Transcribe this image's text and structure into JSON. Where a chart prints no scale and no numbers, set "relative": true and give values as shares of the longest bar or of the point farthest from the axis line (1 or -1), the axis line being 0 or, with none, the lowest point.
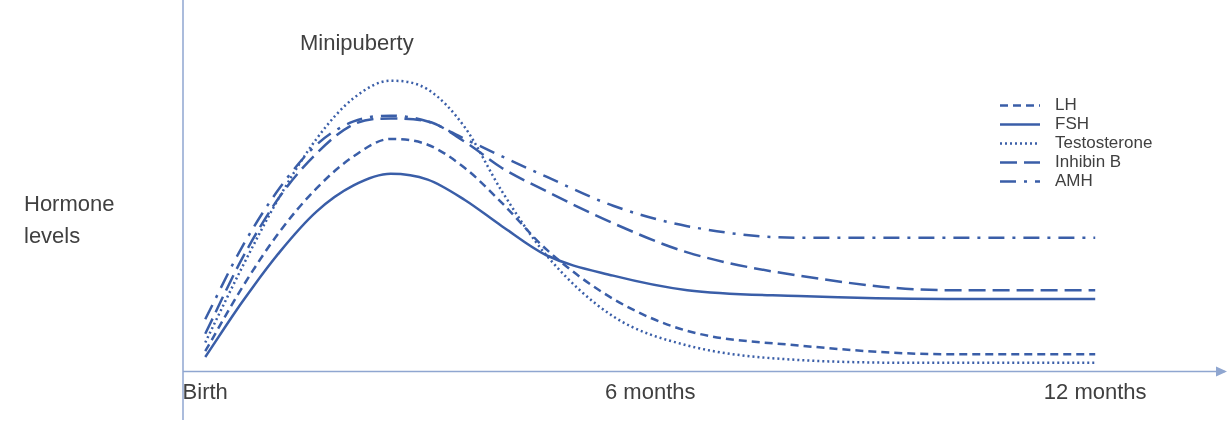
{
  "chart_data": {
    "type": "line",
    "relative": true,
    "ylabel": "Hormone levels",
    "annotations": [
      "Minipuberty"
    ],
    "x": [
      0,
      0.5,
      1,
      1.5,
      2,
      2.5,
      3,
      3.5,
      4,
      4.6,
      5.5,
      6.5,
      8,
      10,
      12
    ],
    "xlim": [
      -0.3,
      13.75
    ],
    "xticks": [
      {
        "value": 0,
        "label": "Birth"
      },
      {
        "value": 6,
        "label": "6 months"
      },
      {
        "value": 12,
        "label": "12 months"
      }
    ],
    "tick_labels": "x",
    "grid": false,
    "legend": "top right",
    "marker": "none",
    "series": [
      {
        "name": "LH",
        "color": "#3a5ea8",
        "line_style": "dashed",
        "values": [
          0.07,
          0.29,
          0.48,
          0.63,
          0.74,
          0.8,
          0.78,
          0.7,
          0.58,
          0.42,
          0.25,
          0.14,
          0.09,
          0.06,
          0.06
        ]
      },
      {
        "name": "FSH",
        "color": "#3a5ea8",
        "line_style": "solid",
        "values": [
          0.05,
          0.24,
          0.41,
          0.55,
          0.64,
          0.68,
          0.66,
          0.59,
          0.5,
          0.4,
          0.33,
          0.28,
          0.26,
          0.25,
          0.25
        ]
      },
      {
        "name": "Testosterone",
        "color": "#3a5ea8",
        "line_style": "dotted",
        "values": [
          0.1,
          0.36,
          0.6,
          0.8,
          0.94,
          1,
          0.97,
          0.84,
          0.62,
          0.4,
          0.19,
          0.09,
          0.04,
          0.03,
          0.03
        ]
      },
      {
        "name": "Inhibin B",
        "color": "#3a5ea8",
        "line_style": "longdash",
        "values": [
          0.13,
          0.39,
          0.6,
          0.75,
          0.85,
          0.87,
          0.86,
          0.79,
          0.7,
          0.62,
          0.51,
          0.41,
          0.33,
          0.28,
          0.28
        ]
      },
      {
        "name": "AMH",
        "color": "#3a5ea8",
        "line_style": "dashdot",
        "values": [
          0.18,
          0.43,
          0.63,
          0.78,
          0.86,
          0.88,
          0.86,
          0.8,
          0.74,
          0.67,
          0.57,
          0.5,
          0.46,
          0.46,
          0.46
        ]
      }
    ]
  }
}
